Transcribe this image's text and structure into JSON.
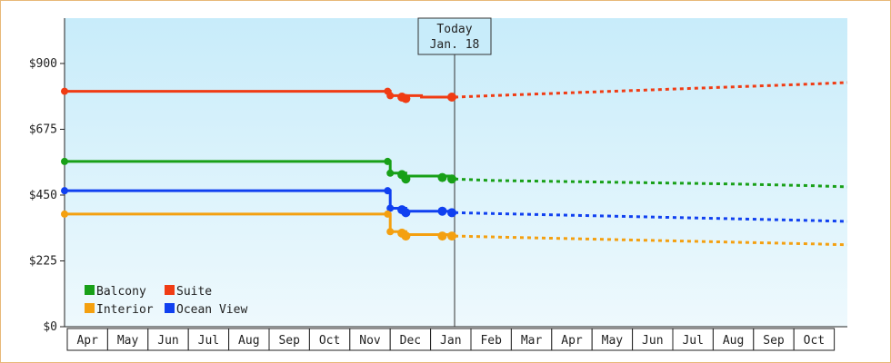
{
  "chart_data": {
    "type": "line",
    "x_axis": {
      "months": [
        "Apr",
        "May",
        "Jun",
        "Jul",
        "Aug",
        "Sep",
        "Oct",
        "Nov",
        "Dec",
        "Jan",
        "Feb",
        "Mar",
        "Apr",
        "May",
        "Jun",
        "Jul",
        "Aug",
        "Sep",
        "Oct"
      ]
    },
    "y_axis": {
      "ticks": [
        {
          "value": 0,
          "label": "$0"
        },
        {
          "value": 225,
          "label": "$225"
        },
        {
          "value": 450,
          "label": "$450"
        },
        {
          "value": 675,
          "label": "$675"
        },
        {
          "value": 900,
          "label": "$900"
        }
      ],
      "ylim": [
        0,
        1055
      ]
    },
    "grid": false,
    "legend_placement": "bottom-left",
    "today_marker": {
      "line1": "Today",
      "line2": "Jan. 18"
    },
    "colors": {
      "plot_bg_top": "#c8ecfa",
      "plot_bg_bottom": "#eef9fd",
      "axis": "#222222"
    },
    "series": [
      {
        "name": "Suite",
        "color": "#f03c14",
        "history": [
          [
            "Apr",
            805
          ],
          [
            "Nov 30",
            805
          ],
          [
            "Dec 1",
            790
          ],
          [
            "Dec 10",
            790
          ],
          [
            "Dec 25",
            785
          ],
          [
            "Jan 17",
            785
          ]
        ],
        "points": [
          [
            "Apr",
            805
          ],
          [
            "Nov 30",
            805
          ],
          [
            "Dec 1",
            790
          ],
          [
            "Dec 10",
            785
          ],
          [
            "Dec 13",
            780
          ],
          [
            "Jan 17",
            785
          ]
        ],
        "forecast": [
          [
            "Jan 17",
            785
          ],
          [
            "Feb",
            790
          ],
          [
            "Mar",
            795
          ],
          [
            "Apr",
            800
          ],
          [
            "May",
            805
          ],
          [
            "Jun",
            810
          ],
          [
            "Jul",
            815
          ],
          [
            "Aug",
            820
          ],
          [
            "Sep",
            825
          ],
          [
            "Oct",
            830
          ],
          [
            "Nov",
            835
          ]
        ]
      },
      {
        "name": "Balcony",
        "color": "#18a018",
        "history": [
          [
            "Apr",
            565
          ],
          [
            "Nov 30",
            565
          ],
          [
            "Dec 1",
            525
          ],
          [
            "Dec 10",
            525
          ],
          [
            "Dec 13",
            515
          ],
          [
            "Jan 17",
            515
          ]
        ],
        "points": [
          [
            "Apr",
            565
          ],
          [
            "Nov 30",
            565
          ],
          [
            "Dec 1",
            525
          ],
          [
            "Dec 10",
            520
          ],
          [
            "Dec 13",
            505
          ],
          [
            "Jan 10",
            510
          ],
          [
            "Jan 17",
            505
          ]
        ],
        "forecast": [
          [
            "Jan 17",
            505
          ],
          [
            "Feb",
            500
          ],
          [
            "Mar",
            498
          ],
          [
            "Apr",
            496
          ],
          [
            "May",
            494
          ],
          [
            "Jun",
            492
          ],
          [
            "Jul",
            490
          ],
          [
            "Aug",
            488
          ],
          [
            "Sep",
            485
          ],
          [
            "Oct",
            482
          ],
          [
            "Nov",
            478
          ]
        ]
      },
      {
        "name": "Ocean View",
        "color": "#1040f0",
        "history": [
          [
            "Apr",
            465
          ],
          [
            "Nov 30",
            465
          ],
          [
            "Dec 1",
            405
          ],
          [
            "Dec 10",
            405
          ],
          [
            "Dec 13",
            395
          ],
          [
            "Jan 17",
            395
          ]
        ],
        "points": [
          [
            "Apr",
            465
          ],
          [
            "Nov 30",
            465
          ],
          [
            "Dec 1",
            405
          ],
          [
            "Dec 10",
            400
          ],
          [
            "Dec 13",
            390
          ],
          [
            "Jan 10",
            395
          ],
          [
            "Jan 17",
            390
          ]
        ],
        "forecast": [
          [
            "Jan 17",
            390
          ],
          [
            "Feb",
            387
          ],
          [
            "Mar",
            384
          ],
          [
            "Apr",
            381
          ],
          [
            "May",
            378
          ],
          [
            "Jun",
            375
          ],
          [
            "Jul",
            372
          ],
          [
            "Aug",
            369
          ],
          [
            "Sep",
            366
          ],
          [
            "Oct",
            363
          ],
          [
            "Nov",
            360
          ]
        ]
      },
      {
        "name": "Interior",
        "color": "#f4a010",
        "history": [
          [
            "Apr",
            385
          ],
          [
            "Nov 30",
            385
          ],
          [
            "Dec 1",
            325
          ],
          [
            "Dec 10",
            325
          ],
          [
            "Dec 13",
            315
          ],
          [
            "Jan 17",
            315
          ]
        ],
        "points": [
          [
            "Apr",
            385
          ],
          [
            "Nov 30",
            385
          ],
          [
            "Dec 1",
            325
          ],
          [
            "Dec 10",
            320
          ],
          [
            "Dec 13",
            310
          ],
          [
            "Jan 10",
            310
          ],
          [
            "Jan 17",
            310
          ]
        ],
        "forecast": [
          [
            "Jan 17",
            310
          ],
          [
            "Feb",
            307
          ],
          [
            "Mar",
            304
          ],
          [
            "Apr",
            301
          ],
          [
            "May",
            298
          ],
          [
            "Jun",
            295
          ],
          [
            "Jul",
            292
          ],
          [
            "Aug",
            289
          ],
          [
            "Sep",
            286
          ],
          [
            "Oct",
            283
          ],
          [
            "Nov",
            280
          ]
        ]
      }
    ],
    "legend": [
      {
        "series": "Balcony",
        "color": "#18a018"
      },
      {
        "series": "Suite",
        "color": "#f03c14"
      },
      {
        "series": "Interior",
        "color": "#f4a010"
      },
      {
        "series": "Ocean View",
        "color": "#1040f0"
      }
    ]
  }
}
